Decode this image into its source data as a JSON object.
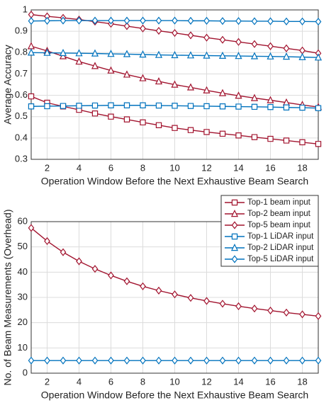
{
  "chart_data": [
    {
      "type": "line",
      "ylabel": "Average Accuracy",
      "xlabel": "Operation Window Before the Next Exhaustive Beam Search",
      "x": [
        1,
        2,
        3,
        4,
        5,
        6,
        7,
        8,
        9,
        10,
        11,
        12,
        13,
        14,
        15,
        16,
        17,
        18,
        19
      ],
      "xlim": [
        1,
        19
      ],
      "xticks": [
        2,
        4,
        6,
        8,
        10,
        12,
        14,
        16,
        18
      ],
      "ylim": [
        0.3,
        1
      ],
      "yticks": [
        0.3,
        0.4,
        0.5,
        0.6,
        0.7,
        0.8,
        0.9,
        1
      ],
      "grid": true,
      "series": [
        {
          "name": "Top-1 beam input",
          "color": "#a2142f",
          "marker": "square",
          "values": [
            0.595,
            0.565,
            0.548,
            0.532,
            0.515,
            0.5,
            0.487,
            0.473,
            0.46,
            0.447,
            0.437,
            0.428,
            0.42,
            0.412,
            0.404,
            0.396,
            0.388,
            0.38,
            0.372
          ]
        },
        {
          "name": "Top-2 beam input",
          "color": "#a2142f",
          "marker": "triangle",
          "values": [
            0.83,
            0.808,
            0.783,
            0.758,
            0.737,
            0.716,
            0.697,
            0.68,
            0.665,
            0.65,
            0.637,
            0.623,
            0.61,
            0.598,
            0.587,
            0.577,
            0.566,
            0.555,
            0.545
          ]
        },
        {
          "name": "Top-5 beam input",
          "color": "#a2142f",
          "marker": "diamond",
          "values": [
            0.978,
            0.97,
            0.963,
            0.955,
            0.945,
            0.935,
            0.924,
            0.913,
            0.902,
            0.892,
            0.881,
            0.87,
            0.86,
            0.85,
            0.84,
            0.83,
            0.82,
            0.81,
            0.797
          ]
        },
        {
          "name": "Top-1 LiDAR input",
          "color": "#0072bd",
          "marker": "square",
          "values": [
            0.548,
            0.549,
            0.55,
            0.551,
            0.552,
            0.553,
            0.553,
            0.553,
            0.552,
            0.551,
            0.55,
            0.549,
            0.548,
            0.547,
            0.546,
            0.545,
            0.543,
            0.542,
            0.54
          ]
        },
        {
          "name": "Top-2 LiDAR input",
          "color": "#0072bd",
          "marker": "triangle",
          "values": [
            0.8,
            0.799,
            0.798,
            0.797,
            0.796,
            0.794,
            0.793,
            0.791,
            0.789,
            0.788,
            0.787,
            0.786,
            0.785,
            0.784,
            0.783,
            0.782,
            0.781,
            0.779,
            0.777
          ]
        },
        {
          "name": "Top-5 LiDAR input",
          "color": "#0072bd",
          "marker": "diamond",
          "values": [
            0.948,
            0.949,
            0.95,
            0.95,
            0.95,
            0.95,
            0.95,
            0.95,
            0.95,
            0.95,
            0.949,
            0.949,
            0.948,
            0.948,
            0.947,
            0.947,
            0.946,
            0.946,
            0.945
          ]
        }
      ]
    },
    {
      "type": "line",
      "ylabel": "No. of Beam Measurements (Overhead)",
      "xlabel": "Operation Window Before the Next Exhaustive Beam Search",
      "x": [
        1,
        2,
        3,
        4,
        5,
        6,
        7,
        8,
        9,
        10,
        11,
        12,
        13,
        14,
        15,
        16,
        17,
        18,
        19
      ],
      "xlim": [
        1,
        19
      ],
      "xticks": [
        2,
        4,
        6,
        8,
        10,
        12,
        14,
        16,
        18
      ],
      "ylim": [
        0,
        60
      ],
      "yticks": [
        0,
        10,
        20,
        30,
        40,
        50,
        60
      ],
      "grid": true,
      "series": [
        {
          "color": "#a2142f",
          "marker": "diamond",
          "values": [
            57.5,
            52.3,
            47.9,
            44.3,
            41.3,
            38.7,
            36.4,
            34.4,
            32.7,
            31.2,
            29.8,
            28.6,
            27.5,
            26.5,
            25.6,
            24.8,
            24.0,
            23.3,
            22.6
          ]
        },
        {
          "color": "#0072bd",
          "marker": "diamond",
          "values": [
            5,
            5,
            5,
            5,
            5,
            5,
            5,
            5,
            5,
            5,
            5,
            5,
            5,
            5,
            5,
            5,
            5,
            5,
            5
          ]
        }
      ]
    }
  ]
}
